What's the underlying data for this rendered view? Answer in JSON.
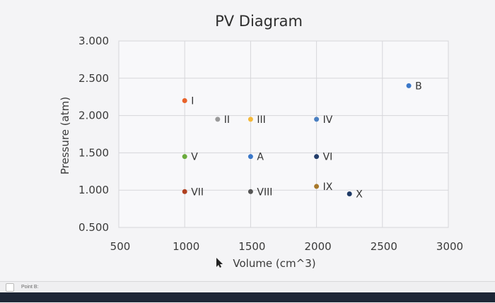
{
  "footer": {
    "label": "Point B:"
  },
  "chart_data": {
    "type": "scatter",
    "title": "PV Diagram",
    "xlabel": "Volume (cm^3)",
    "ylabel": "Pressure (atm)",
    "xlim": [
      500,
      3000
    ],
    "ylim": [
      0.5,
      3.0
    ],
    "x_ticks": [
      "500",
      "1000",
      "1500",
      "2000",
      "2500",
      "3000"
    ],
    "y_ticks": [
      "3.000",
      "2.500",
      "2.000",
      "1.500",
      "1.000",
      "0.500"
    ],
    "grid": true,
    "points": [
      {
        "label": "I",
        "x": 1000,
        "y": 2.2,
        "color": "#e8622a"
      },
      {
        "label": "II",
        "x": 1250,
        "y": 1.95,
        "color": "#9a9a9a"
      },
      {
        "label": "III",
        "x": 1500,
        "y": 1.95,
        "color": "#f5b93a"
      },
      {
        "label": "IV",
        "x": 2000,
        "y": 1.95,
        "color": "#4a7fc1"
      },
      {
        "label": "B",
        "x": 2700,
        "y": 2.4,
        "color": "#3b78c9"
      },
      {
        "label": "V",
        "x": 1000,
        "y": 1.45,
        "color": "#6aab3d"
      },
      {
        "label": "A",
        "x": 1500,
        "y": 1.45,
        "color": "#3b78c9"
      },
      {
        "label": "VI",
        "x": 2000,
        "y": 1.45,
        "color": "#243e6b"
      },
      {
        "label": "VII",
        "x": 1000,
        "y": 0.98,
        "color": "#b04020"
      },
      {
        "label": "VIII",
        "x": 1500,
        "y": 0.98,
        "color": "#555555"
      },
      {
        "label": "IX",
        "x": 2000,
        "y": 1.05,
        "color": "#a7782a"
      },
      {
        "label": "X",
        "x": 2250,
        "y": 0.95,
        "color": "#1f3a66"
      }
    ]
  }
}
